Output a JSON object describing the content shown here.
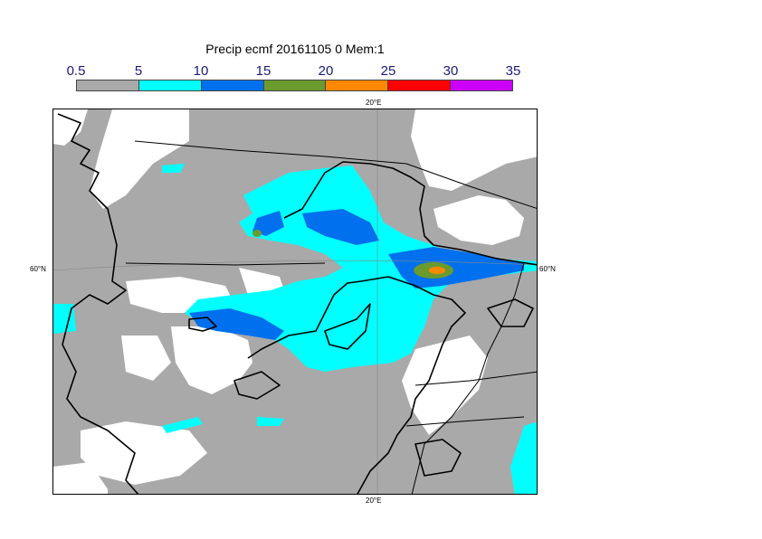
{
  "title": "Precip ecmf 20161105 0 Mem:1",
  "legend": {
    "labels": [
      "0.5",
      "5",
      "10",
      "15",
      "20",
      "25",
      "30",
      "35"
    ],
    "colors": [
      "#a9a9a9",
      "#00ffff",
      "#0070ee",
      "#6b9a2f",
      "#ff8800",
      "#ff0000",
      "#cc00ff"
    ]
  },
  "map": {
    "top_lon_label": "20°E",
    "bottom_lon_label": "20°E",
    "left_lat_label": "60°N",
    "right_lat_label": "60°N"
  }
}
